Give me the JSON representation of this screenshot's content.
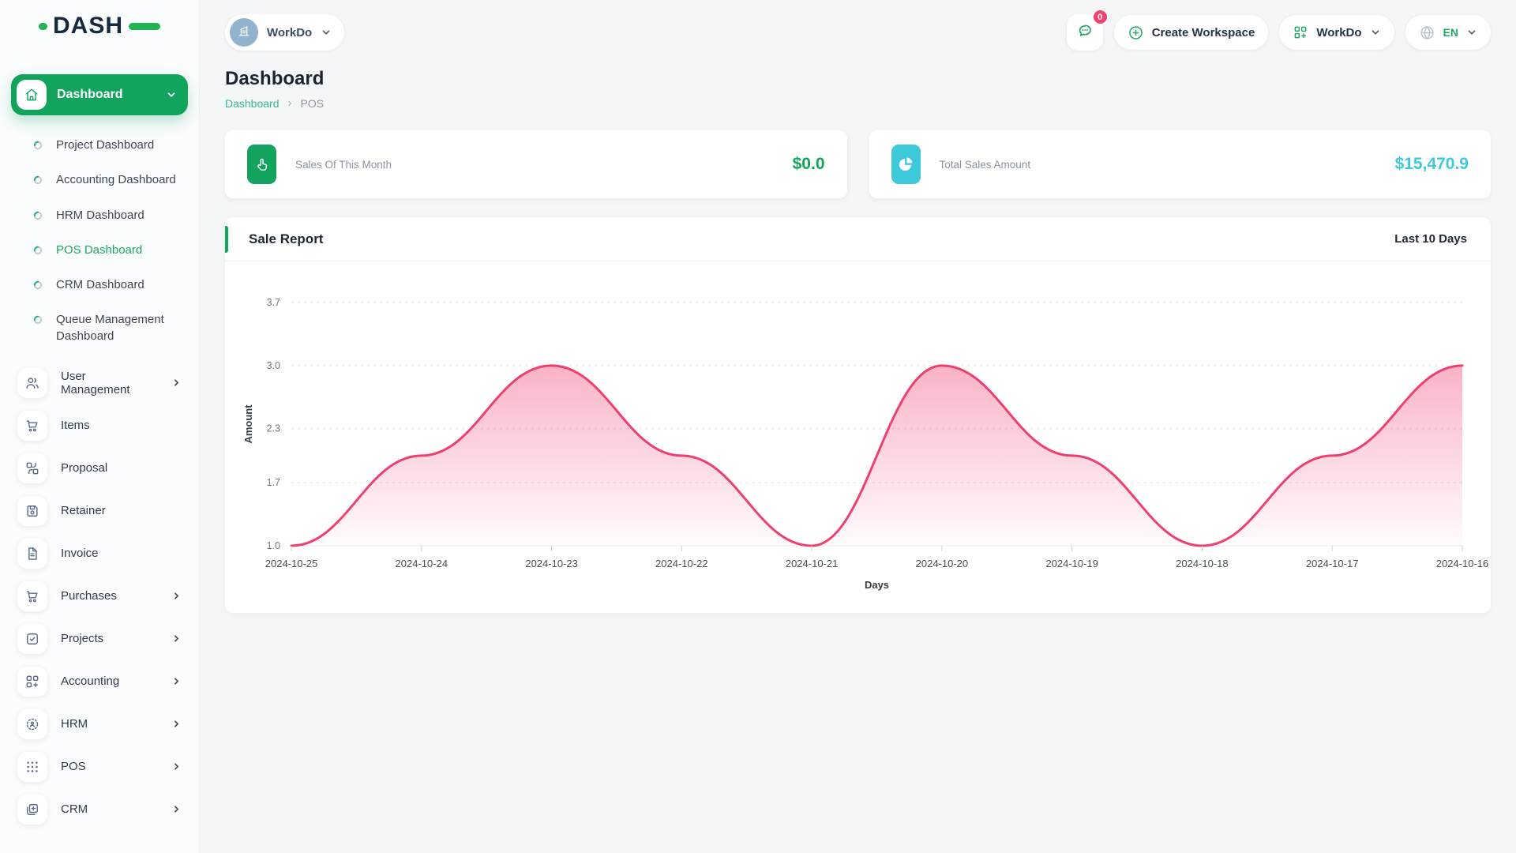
{
  "app": {
    "logo_text": "DASH"
  },
  "topbar": {
    "workspace_switcher_label": "WorkDo",
    "messages_badge": "0",
    "create_workspace_label": "Create Workspace",
    "workdo_menu_label": "WorkDo",
    "language": "EN"
  },
  "sidebar": {
    "dashboard_label": "Dashboard",
    "dashboard_children": [
      {
        "label": "Project Dashboard",
        "active": false
      },
      {
        "label": "Accounting Dashboard",
        "active": false
      },
      {
        "label": "HRM Dashboard",
        "active": false
      },
      {
        "label": "POS Dashboard",
        "active": true
      },
      {
        "label": "CRM Dashboard",
        "active": false
      },
      {
        "label": "Queue Management Dashboard",
        "active": false
      }
    ],
    "items": [
      {
        "label": "User Management",
        "icon": "users-icon",
        "expandable": true
      },
      {
        "label": "Items",
        "icon": "cart-icon",
        "expandable": false
      },
      {
        "label": "Proposal",
        "icon": "proposal-icon",
        "expandable": false
      },
      {
        "label": "Retainer",
        "icon": "retainer-icon",
        "expandable": false
      },
      {
        "label": "Invoice",
        "icon": "invoice-icon",
        "expandable": false
      },
      {
        "label": "Purchases",
        "icon": "purchases-icon",
        "expandable": true
      },
      {
        "label": "Projects",
        "icon": "projects-icon",
        "expandable": true
      },
      {
        "label": "Accounting",
        "icon": "accounting-icon",
        "expandable": true
      },
      {
        "label": "HRM",
        "icon": "hrm-icon",
        "expandable": true
      },
      {
        "label": "POS",
        "icon": "pos-icon",
        "expandable": true
      },
      {
        "label": "CRM",
        "icon": "crm-icon",
        "expandable": true
      }
    ]
  },
  "page": {
    "title": "Dashboard",
    "breadcrumb": {
      "link": "Dashboard",
      "separator": "›",
      "current": "POS"
    }
  },
  "stats": [
    {
      "label": "Sales Of This Month",
      "value": "$0.0",
      "accent": "#12a35c",
      "icon": "tap-icon"
    },
    {
      "label": "Total Sales Amount",
      "value": "$15,470.9",
      "accent": "#3ec9da",
      "icon": "pie-chart-icon"
    }
  ],
  "chart_card": {
    "title": "Sale Report",
    "range_label": "Last 10 Days"
  },
  "chart_data": {
    "type": "area",
    "x": [
      "2024-10-25",
      "2024-10-24",
      "2024-10-23",
      "2024-10-22",
      "2024-10-21",
      "2024-10-20",
      "2024-10-19",
      "2024-10-18",
      "2024-10-17",
      "2024-10-16"
    ],
    "series": [
      {
        "name": "Amount",
        "values": [
          1.0,
          2.0,
          3.0,
          2.0,
          1.0,
          3.0,
          2.0,
          1.0,
          2.0,
          3.0
        ]
      }
    ],
    "title": "Sale Report",
    "xlabel": "Days",
    "ylabel": "Amount",
    "yticks": [
      1.0,
      1.7,
      2.3,
      3.0,
      3.7
    ],
    "ylim": [
      1.0,
      3.7
    ],
    "grid": "dashed-horizontal",
    "legend": "none",
    "line_color": "#ee3f6f",
    "fill_from": "rgba(243,87,130,0.45)",
    "fill_to": "rgba(243,87,130,0.02)"
  }
}
